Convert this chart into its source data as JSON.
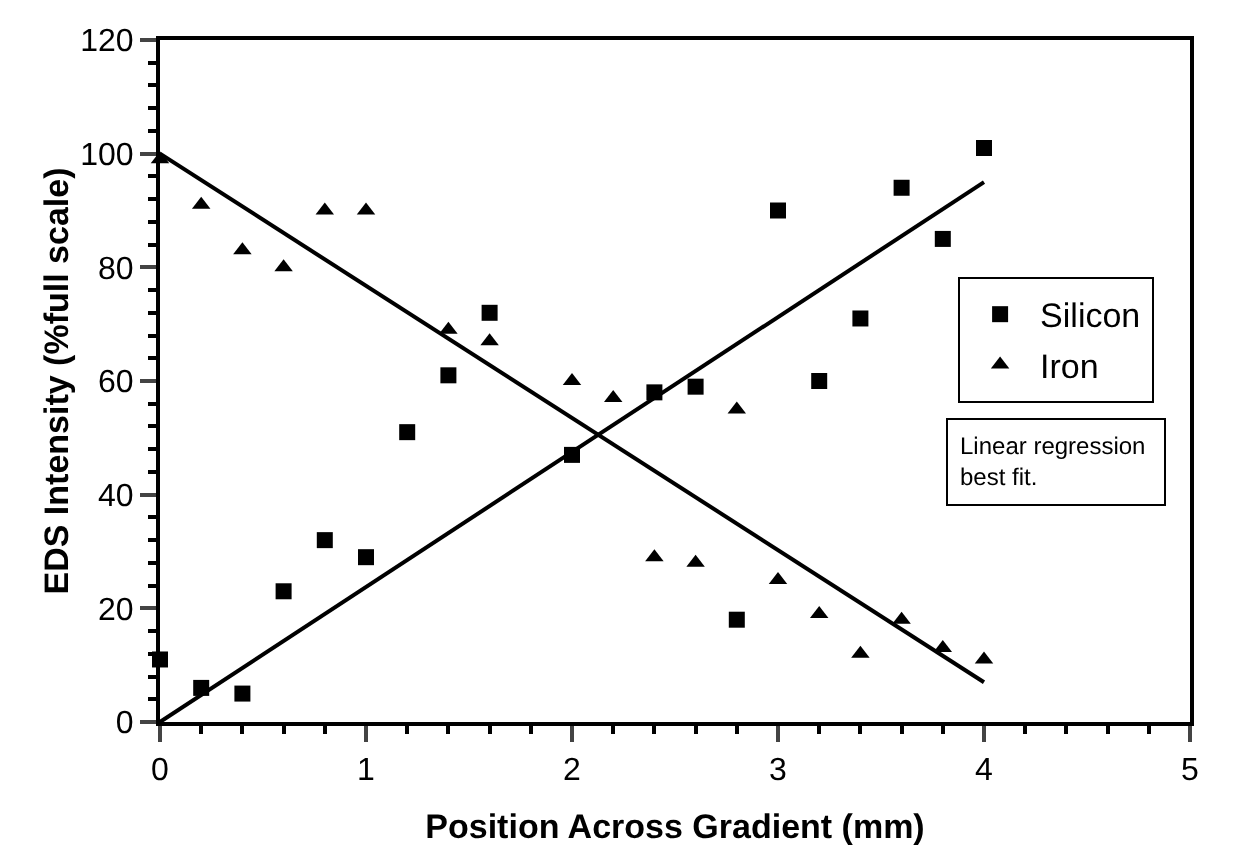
{
  "chart_data": {
    "type": "scatter",
    "xlabel": "Position Across Gradient (mm)",
    "ylabel": "EDS Intensity (%full scale)",
    "xlim": [
      0,
      5
    ],
    "xticks": [
      0,
      1,
      2,
      3,
      4,
      5
    ],
    "ylim": [
      0,
      120
    ],
    "yticks": [
      0,
      20,
      40,
      60,
      80,
      100,
      120
    ],
    "grid": false,
    "legend": "right",
    "annotations": [
      "Linear regression best fit."
    ],
    "series": [
      {
        "name": "Silicon",
        "color": "#000000",
        "marker": "square",
        "x": [
          0,
          0.2,
          0.4,
          0.6,
          0.8,
          1,
          1.2,
          1.4,
          1.6,
          2,
          2.4,
          2.6,
          2.8,
          3,
          3.2,
          3.4,
          3.6,
          3.8,
          4
        ],
        "values": [
          11,
          6,
          5,
          23,
          32,
          29,
          51,
          61,
          72,
          47,
          58,
          59,
          18,
          90,
          60,
          71,
          94,
          85,
          101
        ]
      },
      {
        "name": "Iron",
        "color": "#000000",
        "marker": "triangle",
        "x": [
          0,
          0.2,
          0.4,
          0.6,
          0.8,
          1,
          1.4,
          1.6,
          2,
          2.2,
          2.4,
          2.6,
          2.8,
          3,
          3.2,
          3.4,
          3.6,
          3.8,
          4
        ],
        "values": [
          99,
          91,
          83,
          80,
          90,
          90,
          69,
          67,
          60,
          57,
          29,
          28,
          55,
          25,
          19,
          12,
          18,
          13,
          11
        ]
      },
      {
        "type": "line",
        "color": "#000000",
        "marker": "none",
        "x": [
          0,
          4
        ],
        "values": [
          0,
          95
        ]
      },
      {
        "type": "line",
        "color": "#000000",
        "marker": "none",
        "x": [
          0,
          4
        ],
        "values": [
          100,
          7
        ]
      }
    ]
  }
}
